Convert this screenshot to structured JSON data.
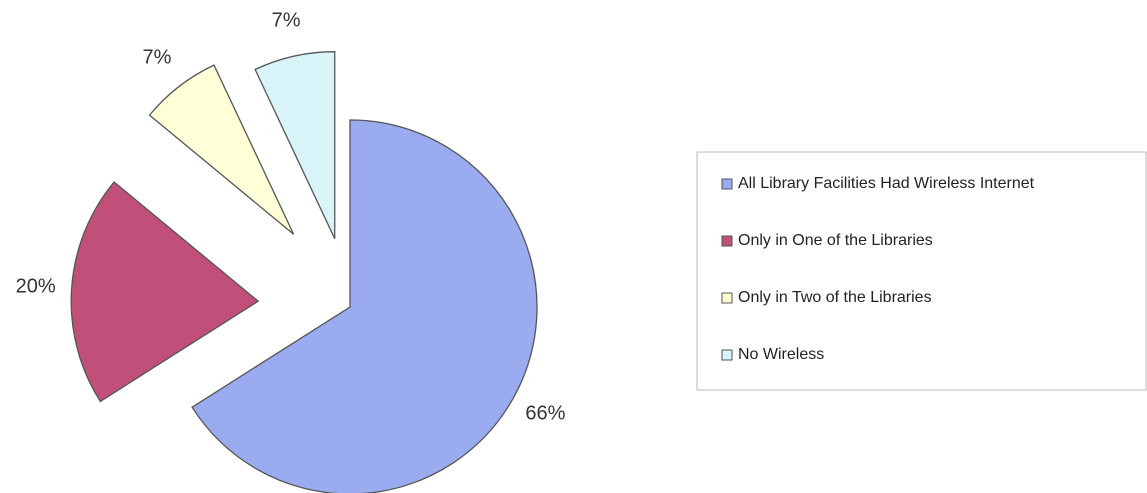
{
  "chart_data": {
    "type": "pie",
    "categories": [
      "All Library Facilities Had Wireless Internet",
      "Only in One of the Libraries",
      "Only in Two of the Libraries",
      "No Wireless"
    ],
    "values": [
      66,
      20,
      7,
      7
    ],
    "value_labels": [
      "66%",
      "20%",
      "7%",
      "7%"
    ],
    "colors": [
      "#9aabf0",
      "#c0507a",
      "#ffffd8",
      "#d8f4f8"
    ],
    "legend": "right"
  }
}
